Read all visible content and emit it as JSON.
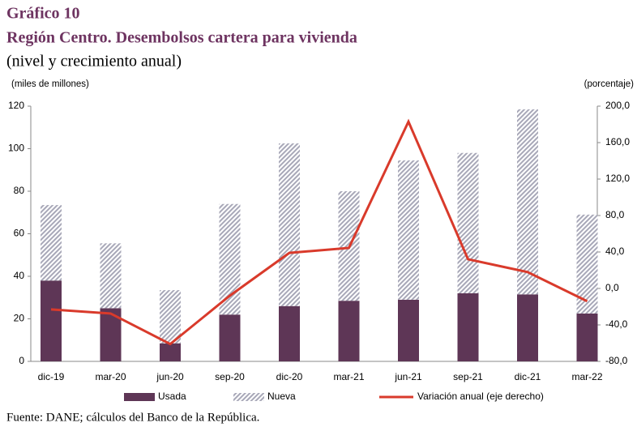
{
  "chart_data": {
    "type": "bar",
    "title": "Gráfico 10",
    "subtitle": "Región Centro. Desembolsos cartera para vivienda",
    "description": "(nivel y crecimiento anual)",
    "y_label": "(miles de millones)",
    "y2_label": "(porcentaje)",
    "source": "Fuente: DANE; cálculos del Banco de la República.",
    "categories": [
      "dic-19",
      "mar-20",
      "jun-20",
      "sep-20",
      "dic-20",
      "mar-21",
      "jun-21",
      "sep-21",
      "dic-21",
      "mar-22"
    ],
    "stacked": true,
    "series": [
      {
        "name": "Usada",
        "color": "#5e3656",
        "values": [
          38,
          25,
          8.5,
          22,
          26,
          28.5,
          29,
          32,
          31.5,
          22.5
        ]
      },
      {
        "name": "Nueva",
        "color": "#a8a8b8",
        "pattern": "hatch",
        "values": [
          35.5,
          30.5,
          25,
          52,
          76.5,
          51.5,
          65.5,
          66,
          87,
          46.5
        ]
      },
      {
        "name": "Variación anual  (eje derecho)",
        "type": "line",
        "axis": "y2",
        "color": "#d93a2b",
        "values": [
          -23,
          -27.5,
          -61,
          -8,
          39,
          44.5,
          183,
          32,
          18,
          -14
        ]
      }
    ],
    "ylim": [
      0,
      120
    ],
    "yticks": [
      0,
      20,
      40,
      60,
      80,
      100,
      120
    ],
    "y2lim": [
      -80,
      200
    ],
    "y2ticks": [
      {
        "value": -80,
        "label": "-80,0"
      },
      {
        "value": -40,
        "label": "-40,0"
      },
      {
        "value": 0,
        "label": "0,0"
      },
      {
        "value": 40,
        "label": "40,0"
      },
      {
        "value": 80,
        "label": "80,0"
      },
      {
        "value": 120,
        "label": "120,0"
      },
      {
        "value": 160,
        "label": "160,0"
      },
      {
        "value": 200,
        "label": "200,0"
      }
    ],
    "legend": "bottom"
  }
}
